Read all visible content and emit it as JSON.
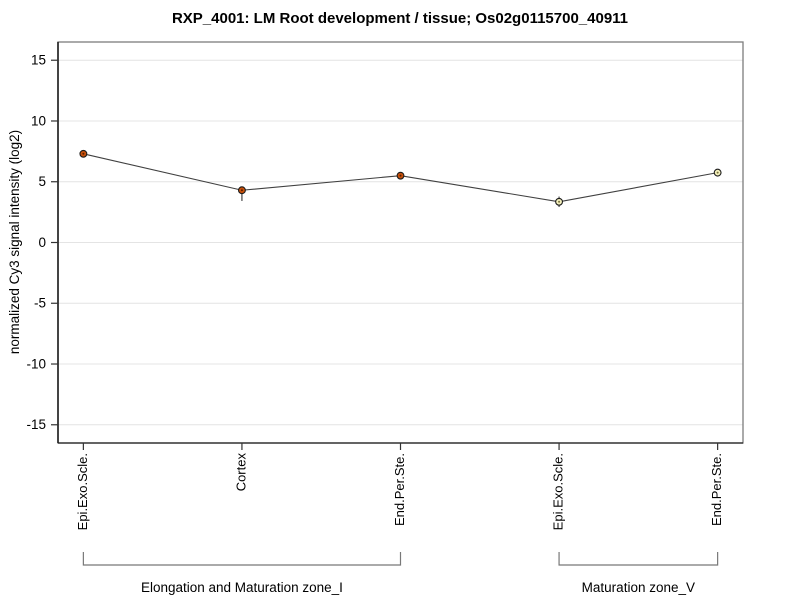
{
  "chart_data": {
    "type": "line",
    "title": "RXP_4001: LM Root development / tissue; Os02g0115700_40911",
    "ylabel": "normalized Cy3 signal intensity (log2)",
    "xlabel": "",
    "ylim": [
      -16.5,
      16.5
    ],
    "yticks": [
      -15,
      -10,
      -5,
      0,
      5,
      10,
      15
    ],
    "grid": true,
    "legend_position": "none",
    "categories": [
      "Epi.Exo.Scle.",
      "Cortex",
      "End.Per.Ste.",
      "Epi.Exo.Scle.",
      "End.Per.Ste."
    ],
    "values": [
      7.3,
      4.3,
      5.5,
      3.35,
      5.75
    ],
    "error_bars": [
      {
        "index": 1,
        "low": 3.42,
        "high": 4.3
      },
      {
        "index": 3,
        "low": 2.92,
        "high": 3.78
      }
    ],
    "point_colors": [
      "#c8500a",
      "#c8500a",
      "#c8500a",
      "#f4f0bc",
      "#f4f0bc"
    ],
    "point_center_colors": [
      "#5a1f00",
      "#5a1f00",
      "#5a1f00",
      "#77713a",
      "#77713a"
    ],
    "groups": [
      {
        "label": "Elongation and Maturation zone_I",
        "from": 0,
        "to": 2
      },
      {
        "label": "Maturation zone_V",
        "from": 3,
        "to": 4
      }
    ],
    "colors": {
      "line": "#404040",
      "grid": "#e4e4e4",
      "box_light": "#7d7d7d",
      "axis_dark": "#1f1f1f",
      "tick": "#333333",
      "bracket": "#787878",
      "error": "#333333",
      "marker_stroke": "#1c1c1c",
      "text": "#000000"
    }
  }
}
